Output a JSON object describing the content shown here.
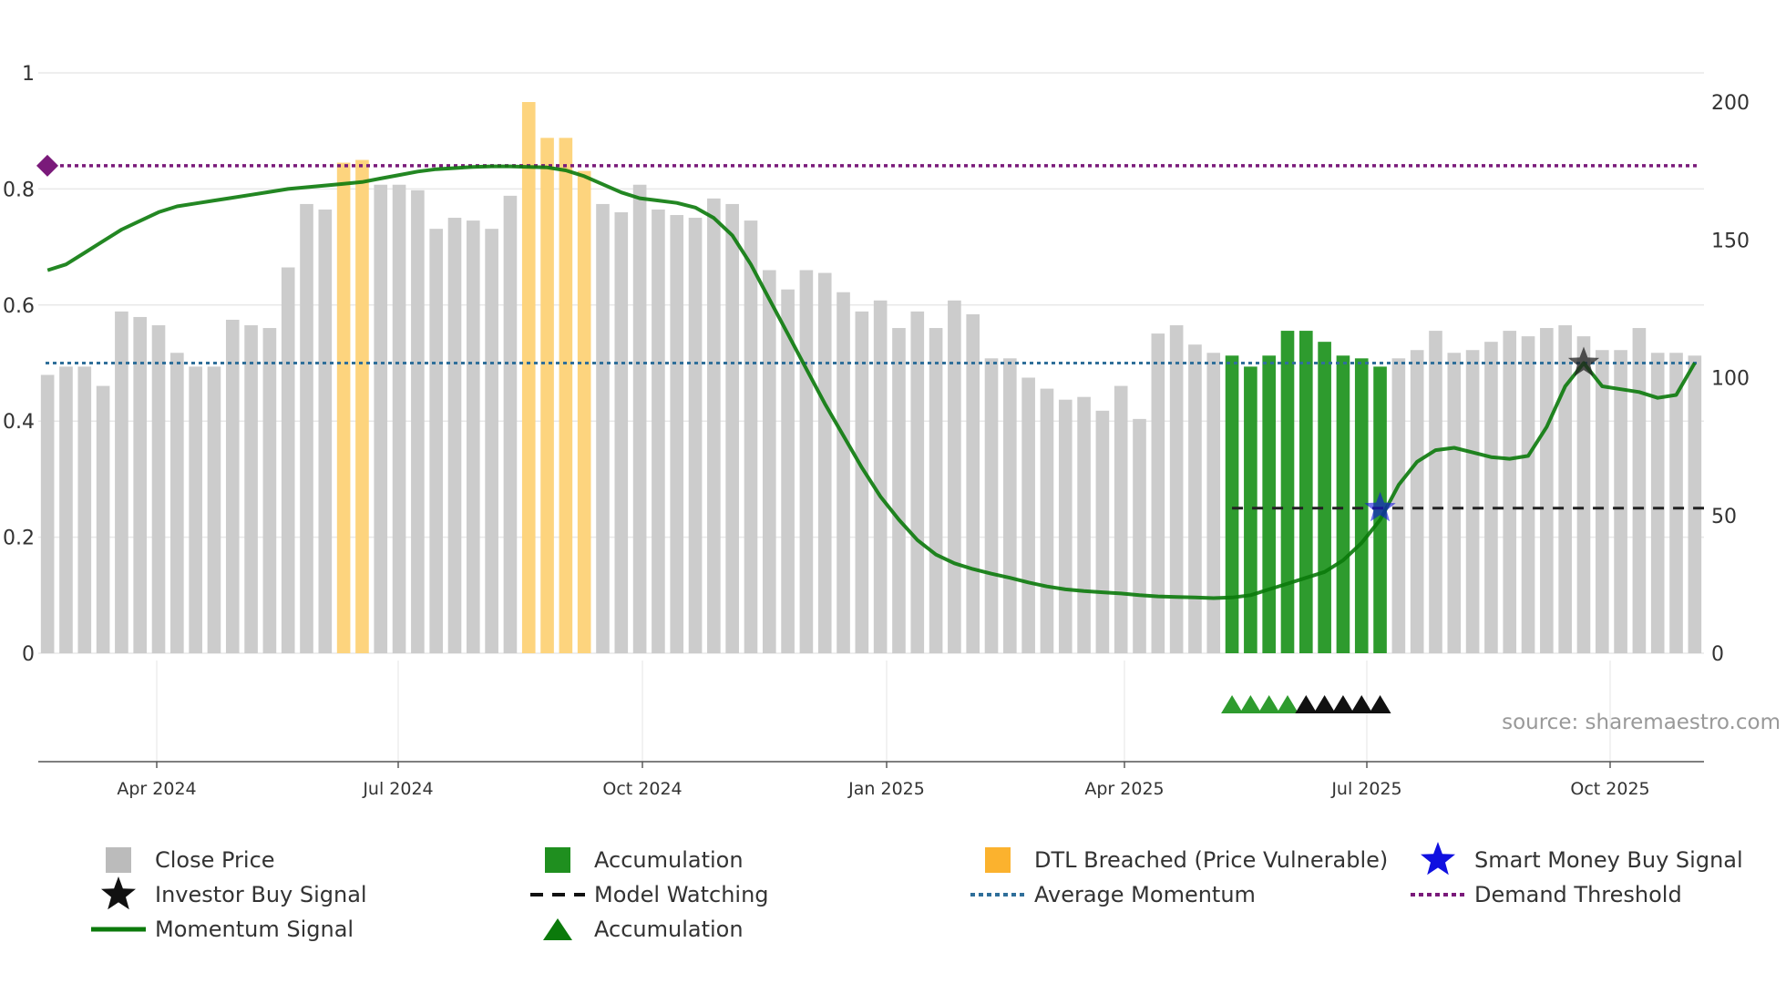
{
  "chart_data": {
    "type": "bar",
    "title": "",
    "source_text": "source: sharemaestro.com",
    "y_left": {
      "range": [
        0,
        1
      ],
      "ticks": [
        "0",
        "0.2",
        "0.4",
        "0.6",
        "0.8",
        "1"
      ]
    },
    "y_right": {
      "range": [
        0,
        200
      ],
      "ticks": [
        "0",
        "50",
        "100",
        "150",
        "200"
      ]
    },
    "x_ticks": [
      "Apr 2024",
      "Jul 2024",
      "Oct 2024",
      "Jan 2025",
      "Apr 2025",
      "Jul 2025",
      "Oct 2025"
    ],
    "weeks": 90,
    "close_price": [
      101,
      104,
      104,
      97,
      124,
      122,
      119,
      109,
      104,
      104,
      121,
      119,
      118,
      140,
      163,
      161,
      178,
      179,
      170,
      170,
      168,
      154,
      158,
      157,
      154,
      166,
      200,
      187,
      187,
      175,
      163,
      160,
      170,
      161,
      159,
      158,
      165,
      163,
      157,
      139,
      132,
      139,
      138,
      131,
      124,
      128,
      118,
      124,
      118,
      128,
      123,
      107,
      107,
      100,
      96,
      92,
      93,
      88,
      97,
      85,
      116,
      119,
      112,
      109,
      108,
      104,
      108,
      117,
      117,
      113,
      108,
      107,
      104,
      107,
      110,
      117,
      109,
      110,
      113,
      117,
      115,
      118,
      119,
      115,
      110,
      110,
      118,
      109,
      109,
      108
    ],
    "bar_category": [
      "close",
      "close",
      "close",
      "close",
      "close",
      "close",
      "close",
      "close",
      "close",
      "close",
      "close",
      "close",
      "close",
      "close",
      "close",
      "close",
      "dtl",
      "dtl",
      "close",
      "close",
      "close",
      "close",
      "close",
      "close",
      "close",
      "close",
      "dtl",
      "dtl",
      "dtl",
      "dtl",
      "close",
      "close",
      "close",
      "close",
      "close",
      "close",
      "close",
      "close",
      "close",
      "close",
      "close",
      "close",
      "close",
      "close",
      "close",
      "close",
      "close",
      "close",
      "close",
      "close",
      "close",
      "close",
      "close",
      "close",
      "close",
      "close",
      "close",
      "close",
      "close",
      "close",
      "close",
      "close",
      "close",
      "close",
      "acc",
      "acc",
      "acc",
      "acc",
      "acc",
      "acc",
      "acc",
      "acc",
      "acc",
      "close",
      "close",
      "close",
      "close",
      "close",
      "close",
      "close",
      "close",
      "close",
      "close",
      "close",
      "close",
      "close",
      "close",
      "close",
      "close",
      "close"
    ],
    "momentum_signal": [
      0.66,
      0.67,
      0.69,
      0.71,
      0.73,
      0.745,
      0.76,
      0.77,
      0.775,
      0.78,
      0.785,
      0.79,
      0.795,
      0.8,
      0.803,
      0.806,
      0.809,
      0.812,
      0.818,
      0.824,
      0.83,
      0.834,
      0.836,
      0.838,
      0.839,
      0.839,
      0.838,
      0.837,
      0.832,
      0.822,
      0.808,
      0.794,
      0.784,
      0.78,
      0.776,
      0.768,
      0.75,
      0.72,
      0.67,
      0.61,
      0.55,
      0.49,
      0.43,
      0.375,
      0.32,
      0.27,
      0.23,
      0.195,
      0.17,
      0.155,
      0.145,
      0.137,
      0.13,
      0.122,
      0.115,
      0.11,
      0.107,
      0.105,
      0.103,
      0.1,
      0.098,
      0.097,
      0.096,
      0.095,
      0.096,
      0.1,
      0.11,
      0.12,
      0.13,
      0.14,
      0.16,
      0.19,
      0.23,
      0.29,
      0.33,
      0.35,
      0.354,
      0.346,
      0.338,
      0.335,
      0.34,
      0.39,
      0.46,
      0.5,
      0.46,
      0.455,
      0.45,
      0.44,
      0.445,
      0.5
    ],
    "average_momentum": 0.5,
    "demand_threshold": 0.84,
    "model_watching": {
      "start_week": 64,
      "end_week": 89,
      "value": 0.25
    },
    "accumulation_markers": {
      "green_weeks": [
        64,
        65,
        66,
        67
      ],
      "black_weeks": [
        68,
        69,
        70,
        71,
        72
      ]
    },
    "smart_money_buy_signal": {
      "week": 72,
      "value": 0.25
    },
    "investor_buy_signal": {
      "week": 83,
      "value": 0.5
    },
    "legend": [
      {
        "key": "close",
        "label": "Close Price"
      },
      {
        "key": "acc",
        "label": "Accumulation"
      },
      {
        "key": "dtl",
        "label": "DTL Breached (Price Vulnerable)"
      },
      {
        "key": "smart",
        "label": "Smart Money Buy Signal"
      },
      {
        "key": "investor",
        "label": "Investor Buy Signal"
      },
      {
        "key": "watch",
        "label": "Model Watching"
      },
      {
        "key": "avgmom",
        "label": "Average Momentum"
      },
      {
        "key": "demand",
        "label": "Demand Threshold"
      },
      {
        "key": "momentum",
        "label": "Momentum Signal"
      },
      {
        "key": "acctri",
        "label": "Accumulation"
      }
    ],
    "colors": {
      "close": "#cccccc",
      "acc": "#2e9b2e",
      "dtl": "#fdd47e",
      "momentum": "#0b7a0b",
      "avg": "#2f6f9a",
      "demand": "#7a1a7a",
      "smart": "#1010e0",
      "investor": "#222222"
    }
  }
}
